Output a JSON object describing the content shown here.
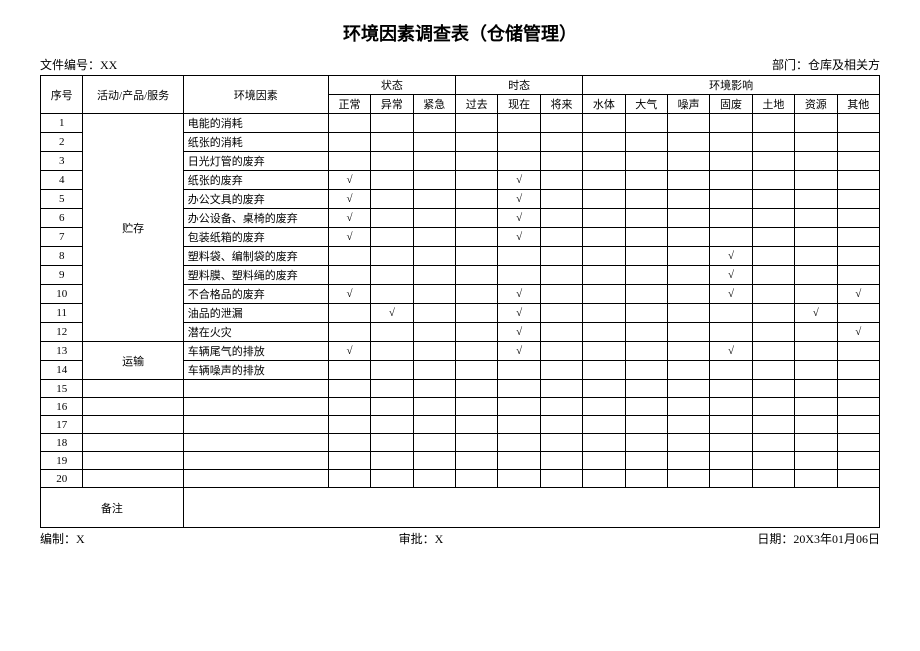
{
  "title": "环境因素调查表（仓储管理）",
  "file_no_label": "文件编号：",
  "file_no_value": "XX",
  "dept_label": "部门：",
  "dept_value": "仓库及相关方",
  "headers": {
    "seq": "序号",
    "activity": "活动/产品/服务",
    "factor": "环境因素",
    "state": "状态",
    "tense": "时态",
    "impact": "环境影响",
    "state_cols": [
      "正常",
      "异常",
      "紧急"
    ],
    "tense_cols": [
      "过去",
      "现在",
      "将来"
    ],
    "impact_cols": [
      "水体",
      "大气",
      "噪声",
      "固废",
      "土地",
      "资源",
      "其他"
    ]
  },
  "activity_groups": [
    {
      "label": "贮存",
      "start": 1,
      "span": 12
    },
    {
      "label": "运输",
      "start": 13,
      "span": 2
    }
  ],
  "rows": [
    {
      "seq": "1",
      "factor": "电能的消耗",
      "marks": {}
    },
    {
      "seq": "2",
      "factor": "纸张的消耗",
      "marks": {}
    },
    {
      "seq": "3",
      "factor": "日光灯管的废弃",
      "marks": {}
    },
    {
      "seq": "4",
      "factor": "纸张的废弃",
      "marks": {
        "normal": "√",
        "now": "√"
      }
    },
    {
      "seq": "5",
      "factor": "办公文具的废弃",
      "marks": {
        "normal": "√",
        "now": "√"
      }
    },
    {
      "seq": "6",
      "factor": "办公设备、桌椅的废弃",
      "marks": {
        "normal": "√",
        "now": "√"
      }
    },
    {
      "seq": "7",
      "factor": "包装纸箱的废弃",
      "marks": {
        "normal": "√",
        "now": "√"
      }
    },
    {
      "seq": "8",
      "factor": "塑料袋、编制袋的废弃",
      "marks": {
        "solid": "√"
      }
    },
    {
      "seq": "9",
      "factor": "塑料膜、塑料绳的废弃",
      "marks": {
        "solid": "√"
      }
    },
    {
      "seq": "10",
      "factor": "不合格品的废弃",
      "marks": {
        "normal": "√",
        "now": "√",
        "solid": "√",
        "other": "√"
      }
    },
    {
      "seq": "11",
      "factor": "油品的泄漏",
      "marks": {
        "abnormal": "√",
        "now": "√",
        "resource": "√"
      }
    },
    {
      "seq": "12",
      "factor": "潜在火灾",
      "marks": {
        "now": "√",
        "other": "√"
      }
    },
    {
      "seq": "13",
      "factor": "车辆尾气的排放",
      "marks": {
        "normal": "√",
        "now": "√",
        "solid": "√"
      }
    },
    {
      "seq": "14",
      "factor": "车辆噪声的排放",
      "marks": {}
    },
    {
      "seq": "15",
      "factor": "",
      "marks": {}
    },
    {
      "seq": "16",
      "factor": "",
      "marks": {}
    },
    {
      "seq": "17",
      "factor": "",
      "marks": {}
    },
    {
      "seq": "18",
      "factor": "",
      "marks": {}
    },
    {
      "seq": "19",
      "factor": "",
      "marks": {}
    },
    {
      "seq": "20",
      "factor": "",
      "marks": {}
    }
  ],
  "remark_label": "备注",
  "footer": {
    "prepare_label": "编制：",
    "prepare_value": "X",
    "approve_label": "审批：",
    "approve_value": "X",
    "date_label": "日期：",
    "date_value": "20X3年01月06日"
  },
  "checkmark": "√"
}
